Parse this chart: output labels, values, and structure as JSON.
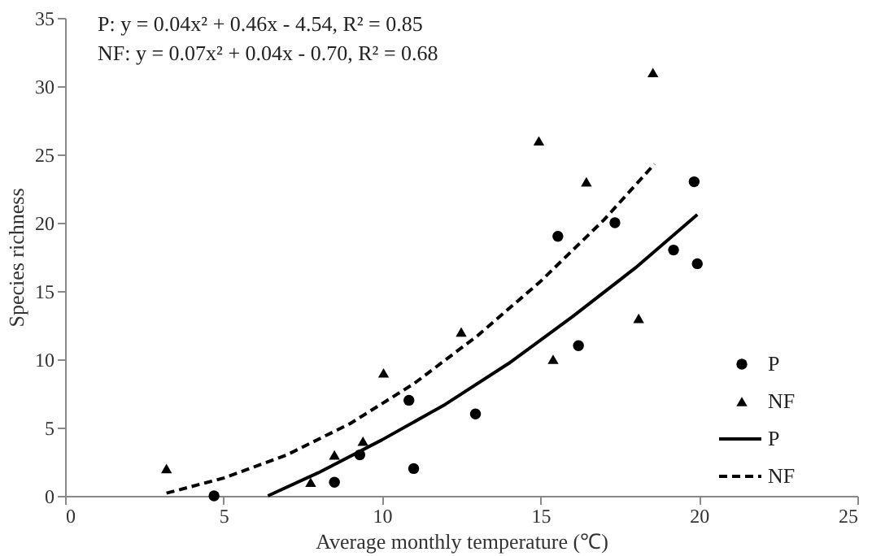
{
  "chart_data": {
    "type": "scatter",
    "xlabel": "Average monthly temperature (℃)",
    "ylabel": "Species richness",
    "annotations": [
      "P: y = 0.04x² + 0.46x - 4.54, R² = 0.85",
      "NF: y = 0.07x² + 0.04x - 0.70, R² = 0.68"
    ],
    "xlim": [
      0,
      25
    ],
    "xticks": [
      0,
      5,
      10,
      15,
      20,
      25
    ],
    "ylim": [
      0,
      35
    ],
    "yticks": [
      0,
      5,
      10,
      15,
      20,
      25,
      30,
      35
    ],
    "grid": false,
    "legend": "bottom right",
    "series": [
      {
        "name": "P",
        "marker": "circle",
        "color": "#000000",
        "x": [
          4.7,
          8.5,
          9.3,
          10.85,
          11.0,
          12.95,
          15.55,
          16.2,
          17.35,
          19.2,
          19.85,
          19.95
        ],
        "values": [
          0,
          1,
          3,
          7,
          2,
          6,
          19,
          11,
          20,
          18,
          23,
          17
        ]
      },
      {
        "name": "NF",
        "marker": "triangle",
        "color": "#000000",
        "x": [
          3.2,
          7.75,
          8.5,
          9.4,
          10.05,
          12.5,
          14.95,
          15.4,
          16.45,
          18.1,
          18.55
        ],
        "values": [
          2,
          1,
          3,
          4,
          9,
          12,
          26,
          10,
          23,
          13,
          31
        ]
      },
      {
        "name": "P",
        "type": "line",
        "marker": "none",
        "line_style": "solid",
        "color": "#000000",
        "x": [
          6.4,
          8,
          10,
          12,
          14,
          16,
          18,
          19.95
        ],
        "values": [
          0.0,
          1.7,
          4.1,
          6.7,
          9.7,
          13.1,
          16.7,
          20.6
        ]
      },
      {
        "name": "NF",
        "type": "line",
        "marker": "none",
        "line_style": "dashed",
        "color": "#000000",
        "x": [
          3.2,
          5,
          7,
          9,
          11,
          13,
          15,
          17,
          18.6
        ],
        "values": [
          0.2,
          1.3,
          3.0,
          5.3,
          8.2,
          11.7,
          15.7,
          20.2,
          24.3
        ]
      }
    ]
  }
}
